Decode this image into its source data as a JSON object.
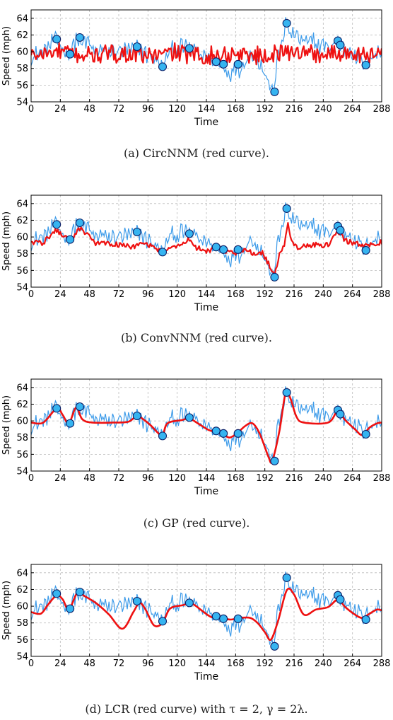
{
  "colors": {
    "ground_truth": "#3d9be9",
    "reconstruction": "#ee1111",
    "observed_fill": "#36b4f0",
    "observed_edge": "#0a1e66",
    "grid": "#bbbbbb",
    "axis": "#000000"
  },
  "chart_data": [
    {
      "type": "line",
      "caption": "(a) CircNNM (red curve).",
      "xlabel": "Time",
      "ylabel": "Speed (mph)",
      "xlim": [
        0,
        288
      ],
      "ylim": [
        54,
        65
      ],
      "xticks": [
        0,
        24,
        48,
        72,
        96,
        120,
        144,
        168,
        192,
        216,
        240,
        264,
        288
      ],
      "yticks": [
        54,
        56,
        58,
        60,
        62,
        64
      ],
      "grid": true,
      "curve_kind": "noisy",
      "curve_amp": 1.0,
      "knots": [
        [
          0,
          59.5
        ],
        [
          24,
          60.0
        ],
        [
          48,
          59.5
        ],
        [
          72,
          59.8
        ],
        [
          96,
          59.5
        ],
        [
          120,
          59.9
        ],
        [
          144,
          59.4
        ],
        [
          168,
          59.8
        ],
        [
          192,
          59.5
        ],
        [
          216,
          60.1
        ],
        [
          240,
          59.6
        ],
        [
          264,
          60.0
        ],
        [
          288,
          59.4
        ]
      ]
    },
    {
      "type": "line",
      "caption": "(b) ConvNNM (red curve).",
      "xlabel": "Time",
      "ylabel": "Speed (mph)",
      "xlim": [
        0,
        288
      ],
      "ylim": [
        54,
        65
      ],
      "xticks": [
        0,
        24,
        48,
        72,
        96,
        120,
        144,
        168,
        192,
        216,
        240,
        264,
        288
      ],
      "yticks": [
        54,
        56,
        58,
        60,
        62,
        64
      ],
      "grid": true,
      "curve_kind": "semi",
      "curve_amp": 0.3,
      "knots": [
        [
          0,
          59.4
        ],
        [
          10,
          59.3
        ],
        [
          20,
          60.8
        ],
        [
          26,
          60.2
        ],
        [
          32,
          59.5
        ],
        [
          40,
          61.0
        ],
        [
          44,
          60.6
        ],
        [
          52,
          59.3
        ],
        [
          60,
          59.2
        ],
        [
          72,
          59.1
        ],
        [
          84,
          58.8
        ],
        [
          92,
          59.3
        ],
        [
          100,
          58.8
        ],
        [
          108,
          58.2
        ],
        [
          120,
          58.9
        ],
        [
          130,
          59.7
        ],
        [
          136,
          58.7
        ],
        [
          146,
          58.3
        ],
        [
          152,
          58.7
        ],
        [
          158,
          58.4
        ],
        [
          166,
          58.0
        ],
        [
          176,
          58.5
        ],
        [
          184,
          58.0
        ],
        [
          190,
          58.1
        ],
        [
          196,
          56.6
        ],
        [
          200,
          55.3
        ],
        [
          204,
          58.0
        ],
        [
          208,
          59.0
        ],
        [
          211,
          61.5
        ],
        [
          214,
          59.3
        ],
        [
          220,
          58.7
        ],
        [
          232,
          59.1
        ],
        [
          240,
          58.9
        ],
        [
          246,
          59.3
        ],
        [
          252,
          60.7
        ],
        [
          258,
          59.6
        ],
        [
          266,
          59.2
        ],
        [
          276,
          58.9
        ],
        [
          288,
          59.4
        ]
      ]
    },
    {
      "type": "line",
      "caption": "(c) GP (red curve).",
      "xlabel": "Time",
      "ylabel": "Speed (mph)",
      "xlim": [
        0,
        288
      ],
      "ylim": [
        54,
        65
      ],
      "xticks": [
        0,
        24,
        48,
        72,
        96,
        120,
        144,
        168,
        192,
        216,
        240,
        264,
        288
      ],
      "yticks": [
        54,
        56,
        58,
        60,
        62,
        64
      ],
      "grid": true,
      "curve_kind": "smooth",
      "curve_amp": 0,
      "knots": [
        [
          0,
          59.8
        ],
        [
          10,
          59.8
        ],
        [
          21,
          61.5
        ],
        [
          26,
          60.7
        ],
        [
          31,
          59.7
        ],
        [
          37,
          61.6
        ],
        [
          42,
          60.2
        ],
        [
          50,
          59.8
        ],
        [
          68,
          59.8
        ],
        [
          80,
          59.9
        ],
        [
          87,
          60.6
        ],
        [
          92,
          60.2
        ],
        [
          98,
          59.5
        ],
        [
          104,
          58.6
        ],
        [
          108,
          58.2
        ],
        [
          112,
          59.7
        ],
        [
          124,
          60.1
        ],
        [
          130,
          60.3
        ],
        [
          136,
          59.8
        ],
        [
          146,
          58.9
        ],
        [
          152,
          58.7
        ],
        [
          158,
          58.4
        ],
        [
          163,
          58.0
        ],
        [
          169,
          58.5
        ],
        [
          176,
          59.4
        ],
        [
          182,
          59.7
        ],
        [
          188,
          58.4
        ],
        [
          195,
          55.7
        ],
        [
          198,
          55.2
        ],
        [
          204,
          58.8
        ],
        [
          209,
          63.3
        ],
        [
          213,
          62.7
        ],
        [
          218,
          60.5
        ],
        [
          224,
          59.8
        ],
        [
          244,
          59.8
        ],
        [
          252,
          61.2
        ],
        [
          258,
          60.1
        ],
        [
          266,
          59.0
        ],
        [
          272,
          58.3
        ],
        [
          278,
          59.2
        ],
        [
          284,
          59.7
        ],
        [
          288,
          59.8
        ]
      ]
    },
    {
      "type": "line",
      "caption": "(d) LCR (red curve) with τ = 2, γ = 2λ.",
      "xlabel": "Time",
      "ylabel": "Speed (mph)",
      "xlim": [
        0,
        288
      ],
      "ylim": [
        54,
        65
      ],
      "xticks": [
        0,
        24,
        48,
        72,
        96,
        120,
        144,
        168,
        192,
        216,
        240,
        264,
        288
      ],
      "yticks": [
        54,
        56,
        58,
        60,
        62,
        64
      ],
      "grid": true,
      "curve_kind": "smooth",
      "curve_amp": 0,
      "knots": [
        [
          0,
          59.3
        ],
        [
          8,
          59.1
        ],
        [
          14,
          60.2
        ],
        [
          21,
          61.3
        ],
        [
          26,
          60.8
        ],
        [
          31,
          59.6
        ],
        [
          38,
          61.6
        ],
        [
          44,
          61.2
        ],
        [
          54,
          60.3
        ],
        [
          64,
          59.0
        ],
        [
          75,
          57.3
        ],
        [
          84,
          59.3
        ],
        [
          89,
          60.4
        ],
        [
          94,
          59.6
        ],
        [
          101,
          57.7
        ],
        [
          108,
          58.0
        ],
        [
          114,
          59.7
        ],
        [
          124,
          60.1
        ],
        [
          132,
          60.3
        ],
        [
          140,
          59.5
        ],
        [
          148,
          58.7
        ],
        [
          156,
          58.6
        ],
        [
          164,
          58.4
        ],
        [
          172,
          58.6
        ],
        [
          180,
          58.6
        ],
        [
          186,
          58.0
        ],
        [
          192,
          56.9
        ],
        [
          197,
          56.0
        ],
        [
          203,
          58.3
        ],
        [
          210,
          61.9
        ],
        [
          216,
          61.4
        ],
        [
          224,
          59.0
        ],
        [
          234,
          59.6
        ],
        [
          244,
          59.9
        ],
        [
          252,
          60.8
        ],
        [
          258,
          59.9
        ],
        [
          266,
          59.0
        ],
        [
          272,
          58.6
        ],
        [
          278,
          59.1
        ],
        [
          284,
          59.6
        ],
        [
          288,
          59.5
        ]
      ]
    }
  ],
  "ground_truth_knots": [
    [
      0,
      59.2
    ],
    [
      6,
      59.8
    ],
    [
      12,
      60.2
    ],
    [
      18,
      61.2
    ],
    [
      21,
      61.5
    ],
    [
      24,
      60.8
    ],
    [
      28,
      60.0
    ],
    [
      31,
      59.7
    ],
    [
      35,
      60.9
    ],
    [
      38,
      61.7
    ],
    [
      41,
      60.6
    ],
    [
      44,
      61.3
    ],
    [
      48,
      60.9
    ],
    [
      52,
      59.9
    ],
    [
      56,
      60.3
    ],
    [
      62,
      59.9
    ],
    [
      68,
      60.0
    ],
    [
      74,
      60.1
    ],
    [
      80,
      60.1
    ],
    [
      84,
      60.2
    ],
    [
      87,
      60.6
    ],
    [
      90,
      60.4
    ],
    [
      94,
      59.8
    ],
    [
      100,
      59.3
    ],
    [
      104,
      58.6
    ],
    [
      108,
      58.2
    ],
    [
      112,
      59.7
    ],
    [
      116,
      60.3
    ],
    [
      120,
      60.2
    ],
    [
      124,
      60.6
    ],
    [
      128,
      60.5
    ],
    [
      132,
      60.3
    ],
    [
      136,
      60.0
    ],
    [
      140,
      59.5
    ],
    [
      144,
      59.6
    ],
    [
      148,
      58.9
    ],
    [
      152,
      58.7
    ],
    [
      156,
      58.4
    ],
    [
      160,
      58.0
    ],
    [
      164,
      57.3
    ],
    [
      168,
      58.2
    ],
    [
      172,
      58.0
    ],
    [
      176,
      59.0
    ],
    [
      180,
      59.6
    ],
    [
      184,
      59.4
    ],
    [
      188,
      58.6
    ],
    [
      192,
      57.4
    ],
    [
      196,
      55.8
    ],
    [
      199,
      55.2
    ],
    [
      202,
      58.6
    ],
    [
      206,
      61.2
    ],
    [
      209,
      63.4
    ],
    [
      212,
      62.3
    ],
    [
      216,
      62.0
    ],
    [
      220,
      61.6
    ],
    [
      224,
      61.2
    ],
    [
      228,
      60.9
    ],
    [
      232,
      61.4
    ],
    [
      236,
      60.6
    ],
    [
      240,
      61.0
    ],
    [
      244,
      60.3
    ],
    [
      248,
      61.0
    ],
    [
      252,
      61.2
    ],
    [
      254,
      60.8
    ],
    [
      258,
      60.2
    ],
    [
      262,
      60.5
    ],
    [
      266,
      59.3
    ],
    [
      270,
      59.2
    ],
    [
      274,
      58.4
    ],
    [
      278,
      59.7
    ],
    [
      282,
      59.5
    ],
    [
      286,
      59.9
    ],
    [
      288,
      59.8
    ]
  ],
  "observed_points": [
    [
      21,
      61.5
    ],
    [
      32,
      59.7
    ],
    [
      40,
      61.7
    ],
    [
      87,
      60.6
    ],
    [
      108,
      58.2
    ],
    [
      130,
      60.4
    ],
    [
      152,
      58.8
    ],
    [
      158,
      58.5
    ],
    [
      170,
      58.5
    ],
    [
      200,
      55.2
    ],
    [
      210,
      63.4
    ],
    [
      252,
      61.3
    ],
    [
      254,
      60.8
    ],
    [
      275,
      58.4
    ]
  ]
}
